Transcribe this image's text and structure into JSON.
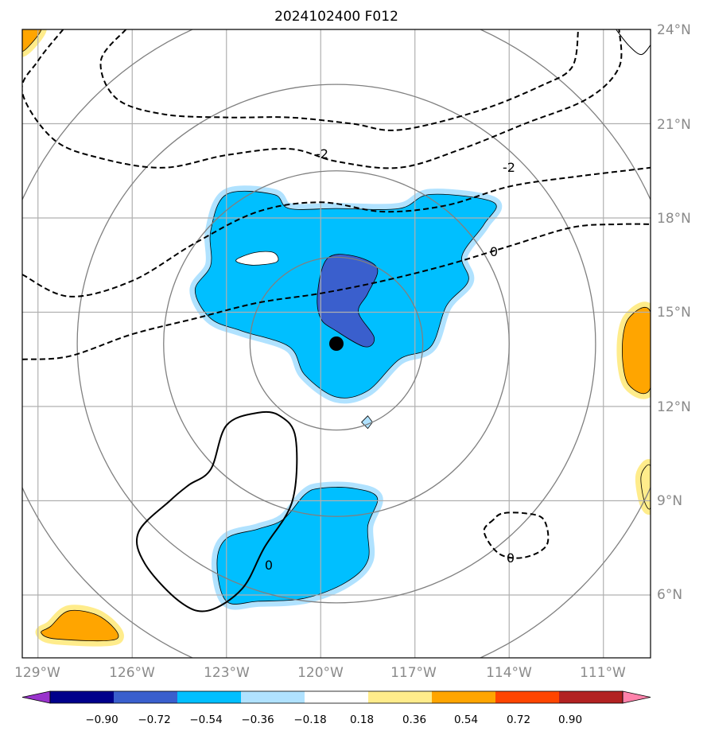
{
  "chart_data": {
    "type": "map-contour",
    "title": "2024102400 F012",
    "x_ticks": [
      "129°W",
      "126°W",
      "123°W",
      "120°W",
      "117°W",
      "114°W",
      "111°W"
    ],
    "x_tick_values": [
      -129,
      -126,
      -123,
      -120,
      -117,
      -114,
      -111
    ],
    "y_ticks": [
      "24°N",
      "21°N",
      "18°N",
      "15°N",
      "12°N",
      "9°N",
      "6°N"
    ],
    "y_tick_values": [
      24,
      21,
      18,
      15,
      12,
      9,
      6
    ],
    "lon_range": [
      -129.5,
      -109.5
    ],
    "lat_range": [
      4.0,
      24.0
    ],
    "center": {
      "lon": -119.5,
      "lat": 14.0
    },
    "range_rings_deg": [
      2.75,
      5.5,
      8.25,
      11.0
    ],
    "colorbar": {
      "ticks": [
        "−0.90",
        "−0.72",
        "−0.54",
        "−0.36",
        "−0.18",
        "0.18",
        "0.36",
        "0.54",
        "0.72",
        "0.90"
      ],
      "colors": [
        "#9933cc",
        "#00008b",
        "#3a5fcd",
        "#00bfff",
        "#b0e2ff",
        "#ffffff",
        "#ffec8b",
        "#ffa500",
        "#ff4500",
        "#b22222",
        "#ff82ab"
      ]
    },
    "contour_labels": [
      "-2",
      "-2",
      "0",
      "0",
      "0"
    ],
    "filled_regions": [
      {
        "name": "central-negative-region",
        "level": "-0.54 to -0.36",
        "color": "#00bfff",
        "points": [
          [
            -123.0,
            18.75
          ],
          [
            -121.5,
            18.75
          ],
          [
            -121.0,
            18.3
          ],
          [
            -119.5,
            18.3
          ],
          [
            -117.5,
            18.3
          ],
          [
            -116.5,
            18.75
          ],
          [
            -114.5,
            18.5
          ],
          [
            -114.8,
            17.8
          ],
          [
            -115.5,
            16.8
          ],
          [
            -115.3,
            16.0
          ],
          [
            -116.0,
            15.2
          ],
          [
            -116.5,
            13.9
          ],
          [
            -117.5,
            13.5
          ],
          [
            -118.5,
            12.5
          ],
          [
            -119.5,
            12.3
          ],
          [
            -120.5,
            13.0
          ],
          [
            -121.0,
            13.9
          ],
          [
            -122.5,
            14.4
          ],
          [
            -123.5,
            14.8
          ],
          [
            -124.0,
            15.7
          ],
          [
            -123.5,
            16.5
          ],
          [
            -123.5,
            17.6
          ]
        ]
      },
      {
        "name": "central-strong-negative-core",
        "level": "-0.72 to -0.54",
        "color": "#3a5fcd",
        "points": [
          [
            -119.8,
            16.7
          ],
          [
            -119.0,
            16.8
          ],
          [
            -118.2,
            16.4
          ],
          [
            -118.5,
            15.6
          ],
          [
            -118.8,
            15.0
          ],
          [
            -118.3,
            14.2
          ],
          [
            -118.6,
            13.9
          ],
          [
            -119.5,
            14.4
          ],
          [
            -120.0,
            14.8
          ],
          [
            -120.1,
            15.6
          ]
        ]
      },
      {
        "name": "southern-negative-region",
        "level": "-0.54 to -0.36",
        "color": "#00bfff",
        "points": [
          [
            -120.0,
            9.4
          ],
          [
            -119.0,
            9.4
          ],
          [
            -118.2,
            9.1
          ],
          [
            -118.5,
            8.2
          ],
          [
            -118.5,
            7.1
          ],
          [
            -119.2,
            6.4
          ],
          [
            -120.5,
            5.9
          ],
          [
            -122.0,
            5.8
          ],
          [
            -123.0,
            5.8
          ],
          [
            -123.3,
            7.0
          ],
          [
            -123.0,
            7.8
          ],
          [
            -122.0,
            8.1
          ],
          [
            -121.2,
            8.4
          ],
          [
            -120.5,
            9.2
          ]
        ]
      },
      {
        "name": "east-positive-region",
        "level": "0.36 to 0.54",
        "color": "#ffa500",
        "points": [
          [
            -109.5,
            15.0
          ],
          [
            -110.2,
            14.8
          ],
          [
            -110.4,
            13.8
          ],
          [
            -110.2,
            12.7
          ],
          [
            -109.5,
            12.6
          ]
        ]
      },
      {
        "name": "southwest-positive-region",
        "level": "0.36 to 0.54",
        "color": "#ffa500",
        "points": [
          [
            -128.6,
            5.0
          ],
          [
            -128.0,
            5.5
          ],
          [
            -127.0,
            5.3
          ],
          [
            -126.5,
            4.6
          ],
          [
            -128.4,
            4.6
          ],
          [
            -128.9,
            4.8
          ]
        ]
      },
      {
        "name": "east-small-positive-region",
        "level": "0.18 to 0.36",
        "color": "#ffec8b",
        "points": [
          [
            -109.5,
            10.1
          ],
          [
            -109.8,
            9.8
          ],
          [
            -109.7,
            9.0
          ],
          [
            -109.5,
            8.8
          ]
        ]
      },
      {
        "name": "northwest-corner-positive-region",
        "level": "0.36 to 0.54",
        "color": "#ffa500",
        "points": [
          [
            -129.5,
            24.0
          ],
          [
            -128.9,
            24.0
          ],
          [
            -129.5,
            23.3
          ]
        ]
      }
    ],
    "contour_lines": [
      {
        "name": "contour-minus2-north",
        "level": -2,
        "style": "dashed",
        "points": [
          [
            -128.2,
            24.0
          ],
          [
            -129.0,
            23.0
          ],
          [
            -129.5,
            22.0
          ],
          [
            -128.5,
            20.5
          ],
          [
            -127.0,
            19.9
          ],
          [
            -125.0,
            19.6
          ],
          [
            -123.0,
            20.0
          ],
          [
            -121.0,
            20.2
          ],
          [
            -119.5,
            19.8
          ],
          [
            -117.5,
            19.6
          ],
          [
            -115.5,
            20.2
          ],
          [
            -113.5,
            21.0
          ],
          [
            -111.5,
            21.8
          ],
          [
            -110.5,
            22.8
          ],
          [
            -110.5,
            24.0
          ]
        ]
      },
      {
        "name": "contour-minus2-inner",
        "level": -2,
        "style": "dashed",
        "points": [
          [
            -126.2,
            24.0
          ],
          [
            -127.0,
            23.0
          ],
          [
            -126.5,
            21.8
          ],
          [
            -125.0,
            21.3
          ],
          [
            -123.0,
            21.2
          ],
          [
            -121.0,
            21.2
          ],
          [
            -119.0,
            21.0
          ],
          [
            -117.5,
            20.8
          ],
          [
            -115.0,
            21.4
          ],
          [
            -113.0,
            22.2
          ],
          [
            -112.0,
            22.8
          ],
          [
            -111.8,
            24.0
          ]
        ]
      },
      {
        "name": "contour-0-upper",
        "level": 0,
        "style": "dashed",
        "points": [
          [
            -129.5,
            16.2
          ],
          [
            -128.0,
            15.5
          ],
          [
            -126.0,
            16.0
          ],
          [
            -124.0,
            17.2
          ],
          [
            -122.0,
            18.2
          ],
          [
            -120.0,
            18.5
          ],
          [
            -118.0,
            18.2
          ],
          [
            -116.0,
            18.4
          ],
          [
            -114.0,
            19.0
          ],
          [
            -112.0,
            19.3
          ],
          [
            -109.5,
            19.6
          ]
        ]
      },
      {
        "name": "contour-0-lower",
        "level": 0,
        "style": "dashed",
        "points": [
          [
            -129.5,
            13.5
          ],
          [
            -128.0,
            13.6
          ],
          [
            -126.0,
            14.3
          ],
          [
            -124.0,
            14.8
          ],
          [
            -122.0,
            15.3
          ],
          [
            -120.0,
            15.6
          ],
          [
            -118.0,
            16.0
          ],
          [
            -116.0,
            16.5
          ],
          [
            -114.0,
            17.1
          ],
          [
            -112.0,
            17.7
          ],
          [
            -110.5,
            17.8
          ],
          [
            -109.5,
            17.8
          ]
        ]
      },
      {
        "name": "contour-0-southeast-loop",
        "level": 0,
        "style": "dashed",
        "points": [
          [
            -114.5,
            8.4
          ],
          [
            -114.8,
            8.0
          ],
          [
            -114.3,
            7.3
          ],
          [
            -113.5,
            7.2
          ],
          [
            -112.8,
            7.6
          ],
          [
            -112.9,
            8.4
          ],
          [
            -113.5,
            8.6
          ],
          [
            -114.2,
            8.6
          ]
        ]
      },
      {
        "name": "contour-0-southwest-loop",
        "level": 0,
        "style": "solid",
        "points": [
          [
            -123.5,
            10.0
          ],
          [
            -123.0,
            11.4
          ],
          [
            -122.0,
            11.8
          ],
          [
            -121.3,
            11.7
          ],
          [
            -120.8,
            11.0
          ],
          [
            -120.9,
            9.0
          ],
          [
            -121.8,
            7.5
          ],
          [
            -122.5,
            6.2
          ],
          [
            -123.6,
            5.5
          ],
          [
            -124.5,
            5.8
          ],
          [
            -125.6,
            7.0
          ],
          [
            -125.8,
            8.0
          ],
          [
            -124.8,
            9.0
          ],
          [
            -124.2,
            9.5
          ]
        ]
      }
    ]
  }
}
